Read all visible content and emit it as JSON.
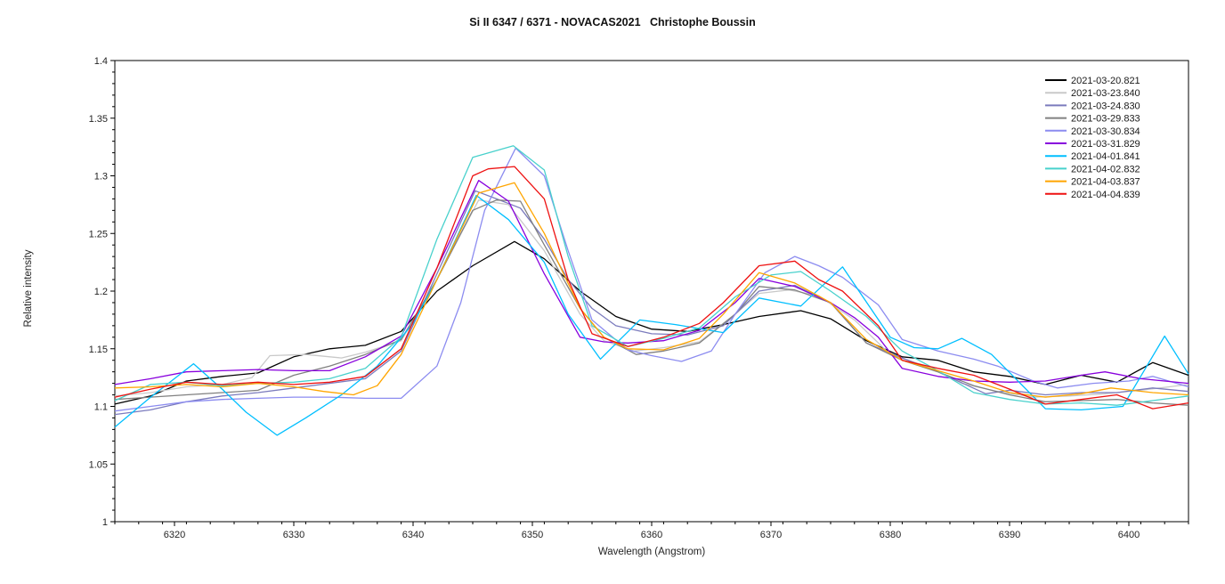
{
  "header": {
    "title": "Si II 6347 / 6371 - NOVACAS2021   Christophe Boussin"
  },
  "chart_data": {
    "type": "line",
    "title": "Si II 6347 / 6371 - NOVACAS2021   Christophe Boussin",
    "xlabel": "Wavelength (Angstrom)",
    "ylabel": "Relative intensity",
    "xlim": [
      6315,
      6405
    ],
    "ylim": [
      1.0,
      1.4
    ],
    "grid": false,
    "legend_position": "top-right",
    "x_major_ticks": [
      6320,
      6330,
      6340,
      6350,
      6360,
      6370,
      6380,
      6390,
      6400
    ],
    "x_minor_step": 2,
    "y_major_ticks": [
      1.0,
      1.05,
      1.1,
      1.15,
      1.2,
      1.25,
      1.3,
      1.35,
      1.4
    ],
    "y_tick_labels": [
      "1",
      "1.05",
      "1.1",
      "1.15",
      "1.2",
      "1.25",
      "1.3",
      "1.35",
      "1.4"
    ],
    "y_minor_step": 0.01,
    "series": [
      {
        "name": "2021-03-20.821",
        "color": "#000000",
        "x": [
          6315,
          6318,
          6321,
          6324,
          6327,
          6330,
          6333,
          6336,
          6339,
          6342,
          6345,
          6348.5,
          6351,
          6354,
          6357,
          6360,
          6363,
          6366,
          6369,
          6372.5,
          6375,
          6378,
          6381,
          6384,
          6387,
          6390,
          6393,
          6396,
          6399,
          6402,
          6405
        ],
        "y": [
          1.102,
          1.109,
          1.122,
          1.126,
          1.129,
          1.143,
          1.15,
          1.153,
          1.165,
          1.2,
          1.222,
          1.243,
          1.228,
          1.2,
          1.178,
          1.167,
          1.165,
          1.171,
          1.178,
          1.183,
          1.176,
          1.157,
          1.143,
          1.14,
          1.13,
          1.126,
          1.119,
          1.127,
          1.121,
          1.138,
          1.127
        ]
      },
      {
        "name": "2021-03-23.840",
        "color": "#c9c9c9",
        "x": [
          6315,
          6318,
          6321,
          6324,
          6326.5,
          6328,
          6331,
          6334,
          6336,
          6339,
          6342,
          6345.5,
          6348,
          6351,
          6354,
          6356,
          6358.5,
          6361,
          6364,
          6367,
          6369,
          6371.5,
          6374,
          6377,
          6380,
          6383,
          6386,
          6389,
          6392,
          6395,
          6398,
          6401,
          6405
        ],
        "y": [
          1.109,
          1.112,
          1.117,
          1.119,
          1.125,
          1.144,
          1.145,
          1.142,
          1.147,
          1.157,
          1.21,
          1.279,
          1.275,
          1.235,
          1.18,
          1.157,
          1.148,
          1.151,
          1.156,
          1.18,
          1.198,
          1.201,
          1.196,
          1.175,
          1.145,
          1.135,
          1.12,
          1.113,
          1.108,
          1.109,
          1.111,
          1.114,
          1.119
        ]
      },
      {
        "name": "2021-03-24.830",
        "color": "#7b7bbd",
        "x": [
          6315,
          6318,
          6321,
          6324,
          6327,
          6330,
          6333,
          6336,
          6339,
          6342,
          6345.2,
          6347,
          6349,
          6351,
          6353,
          6355,
          6357,
          6360,
          6363,
          6366,
          6369,
          6372,
          6375,
          6378,
          6381,
          6384,
          6388,
          6390,
          6393,
          6396,
          6399,
          6402,
          6405
        ],
        "y": [
          1.093,
          1.097,
          1.104,
          1.109,
          1.112,
          1.116,
          1.12,
          1.124,
          1.148,
          1.215,
          1.287,
          1.28,
          1.272,
          1.245,
          1.21,
          1.185,
          1.17,
          1.163,
          1.162,
          1.17,
          1.2,
          1.205,
          1.19,
          1.155,
          1.142,
          1.13,
          1.111,
          1.114,
          1.11,
          1.112,
          1.112,
          1.116,
          1.113
        ]
      },
      {
        "name": "2021-03-29.833",
        "color": "#808080",
        "x": [
          6315,
          6318,
          6321,
          6324,
          6327,
          6330,
          6333,
          6336,
          6339,
          6342,
          6345,
          6347,
          6349,
          6351,
          6354,
          6356,
          6358.7,
          6361,
          6364,
          6367,
          6369,
          6372,
          6375,
          6378,
          6381,
          6384,
          6387,
          6390,
          6393,
          6396,
          6399,
          6402,
          6405
        ],
        "y": [
          1.106,
          1.108,
          1.11,
          1.112,
          1.114,
          1.127,
          1.135,
          1.145,
          1.158,
          1.21,
          1.27,
          1.279,
          1.278,
          1.24,
          1.185,
          1.16,
          1.145,
          1.148,
          1.155,
          1.18,
          1.204,
          1.201,
          1.19,
          1.155,
          1.14,
          1.13,
          1.118,
          1.11,
          1.104,
          1.105,
          1.106,
          1.103,
          1.101
        ]
      },
      {
        "name": "2021-03-30.834",
        "color": "#8c8cf0",
        "x": [
          6315,
          6318,
          6321,
          6324,
          6327,
          6330,
          6333,
          6336,
          6339,
          6342,
          6344,
          6346,
          6348.6,
          6351,
          6353,
          6355,
          6358,
          6360,
          6362.5,
          6365,
          6367,
          6369.5,
          6372,
          6374,
          6376,
          6379,
          6381,
          6384,
          6387,
          6389,
          6392,
          6394,
          6397,
          6400,
          6402,
          6405
        ],
        "y": [
          1.096,
          1.1,
          1.104,
          1.106,
          1.107,
          1.108,
          1.108,
          1.107,
          1.107,
          1.135,
          1.19,
          1.27,
          1.324,
          1.3,
          1.235,
          1.175,
          1.149,
          1.144,
          1.139,
          1.148,
          1.18,
          1.216,
          1.23,
          1.222,
          1.212,
          1.188,
          1.158,
          1.148,
          1.141,
          1.135,
          1.122,
          1.116,
          1.12,
          1.122,
          1.126,
          1.117
        ]
      },
      {
        "name": "2021-03-31.829",
        "color": "#8800dd",
        "x": [
          6315,
          6318,
          6321,
          6324,
          6327,
          6330,
          6333,
          6336,
          6339,
          6342,
          6345.5,
          6348,
          6351,
          6354,
          6356,
          6358,
          6361,
          6364,
          6367,
          6369,
          6372,
          6375,
          6377,
          6379,
          6381,
          6384,
          6387,
          6390,
          6393,
          6396,
          6398,
          6401,
          6405
        ],
        "y": [
          1.119,
          1.124,
          1.13,
          1.131,
          1.132,
          1.131,
          1.131,
          1.143,
          1.161,
          1.22,
          1.296,
          1.278,
          1.215,
          1.16,
          1.156,
          1.155,
          1.157,
          1.166,
          1.19,
          1.211,
          1.204,
          1.19,
          1.177,
          1.16,
          1.133,
          1.126,
          1.122,
          1.121,
          1.122,
          1.127,
          1.13,
          1.124,
          1.12
        ]
      },
      {
        "name": "2021-04-01.841",
        "color": "#00bfff",
        "x": [
          6315,
          6318,
          6321.6,
          6324,
          6326,
          6328.6,
          6331,
          6334,
          6337,
          6340,
          6342,
          6345.3,
          6348,
          6351,
          6353,
          6355.7,
          6359,
          6362,
          6366,
          6369,
          6372.5,
          6376,
          6380,
          6382,
          6384,
          6386,
          6388.5,
          6393,
          6396,
          6399.5,
          6403,
          6405
        ],
        "y": [
          1.082,
          1.108,
          1.137,
          1.115,
          1.095,
          1.075,
          1.09,
          1.11,
          1.135,
          1.172,
          1.21,
          1.283,
          1.262,
          1.225,
          1.18,
          1.141,
          1.175,
          1.171,
          1.164,
          1.194,
          1.187,
          1.221,
          1.16,
          1.151,
          1.15,
          1.159,
          1.145,
          1.098,
          1.097,
          1.1,
          1.161,
          1.128
        ]
      },
      {
        "name": "2021-04-02.832",
        "color": "#48d1cc",
        "x": [
          6315,
          6318,
          6321,
          6324,
          6327,
          6330,
          6333,
          6336,
          6339,
          6342,
          6345,
          6348.4,
          6351,
          6353,
          6355,
          6358,
          6361,
          6364,
          6367,
          6370,
          6372.5,
          6375,
          6378,
          6381,
          6384,
          6387,
          6390,
          6393,
          6396,
          6399,
          6402,
          6405
        ],
        "y": [
          1.105,
          1.119,
          1.121,
          1.118,
          1.12,
          1.121,
          1.124,
          1.133,
          1.16,
          1.245,
          1.316,
          1.326,
          1.305,
          1.23,
          1.17,
          1.152,
          1.159,
          1.168,
          1.195,
          1.214,
          1.217,
          1.2,
          1.178,
          1.148,
          1.131,
          1.112,
          1.106,
          1.102,
          1.103,
          1.101,
          1.105,
          1.109
        ]
      },
      {
        "name": "2021-04-03.837",
        "color": "#ffa500",
        "x": [
          6315,
          6318,
          6321,
          6324,
          6327,
          6330,
          6332.5,
          6335,
          6337,
          6339,
          6342,
          6345.5,
          6348.5,
          6351,
          6354,
          6356,
          6358,
          6361,
          6364,
          6366,
          6369,
          6372,
          6375,
          6378,
          6381,
          6384,
          6387,
          6390,
          6393,
          6396,
          6398.5,
          6402,
          6405
        ],
        "y": [
          1.116,
          1.117,
          1.119,
          1.117,
          1.12,
          1.117,
          1.113,
          1.11,
          1.118,
          1.145,
          1.21,
          1.285,
          1.294,
          1.25,
          1.185,
          1.16,
          1.15,
          1.149,
          1.159,
          1.18,
          1.216,
          1.207,
          1.19,
          1.158,
          1.14,
          1.131,
          1.122,
          1.112,
          1.108,
          1.111,
          1.116,
          1.112,
          1.11
        ]
      },
      {
        "name": "2021-04-04.839",
        "color": "#ee1111",
        "x": [
          6315,
          6318,
          6321,
          6324,
          6327,
          6330,
          6333,
          6336,
          6339,
          6342,
          6345,
          6346.3,
          6348.5,
          6351,
          6353,
          6355,
          6358,
          6361,
          6364,
          6366,
          6369,
          6372,
          6374,
          6376,
          6379,
          6381,
          6384,
          6387,
          6390,
          6393,
          6396,
          6399,
          6402,
          6405
        ],
        "y": [
          1.108,
          1.115,
          1.121,
          1.119,
          1.121,
          1.119,
          1.121,
          1.126,
          1.15,
          1.22,
          1.3,
          1.306,
          1.308,
          1.28,
          1.21,
          1.163,
          1.152,
          1.16,
          1.172,
          1.19,
          1.222,
          1.226,
          1.21,
          1.2,
          1.17,
          1.14,
          1.133,
          1.127,
          1.115,
          1.102,
          1.106,
          1.11,
          1.098,
          1.103
        ]
      }
    ]
  }
}
